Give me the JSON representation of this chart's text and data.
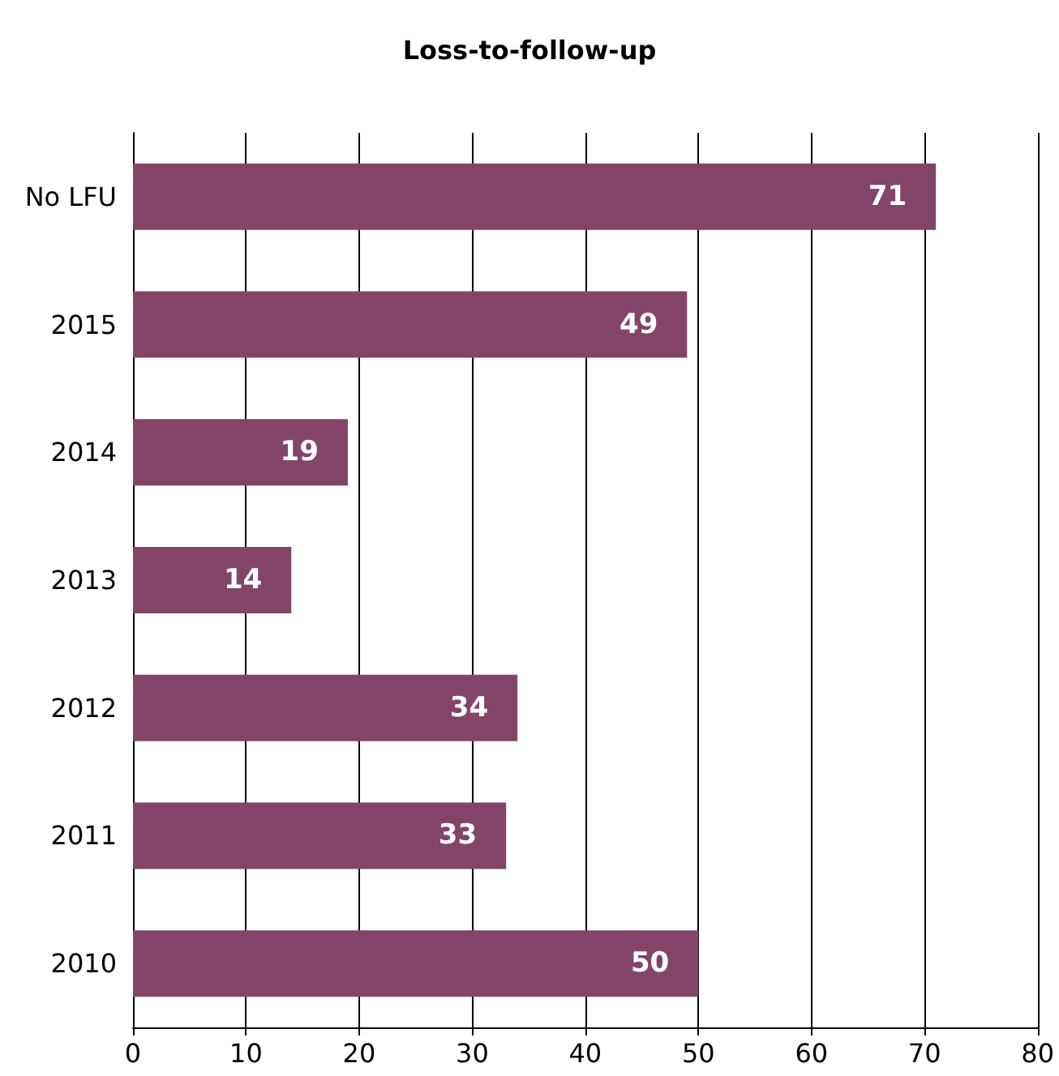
{
  "chart_data": {
    "type": "bar",
    "title": "Loss-to-follow-up",
    "orientation": "horizontal",
    "categories": [
      "No LFU",
      "2015",
      "2014",
      "2013",
      "2012",
      "2011",
      "2010"
    ],
    "values": [
      71,
      49,
      19,
      14,
      34,
      33,
      50
    ],
    "color": "#824568",
    "xlim": [
      0,
      80
    ],
    "xticks": [
      0,
      10,
      20,
      30,
      40,
      50,
      60,
      70,
      80
    ],
    "grid": "x",
    "data_labels": true
  }
}
